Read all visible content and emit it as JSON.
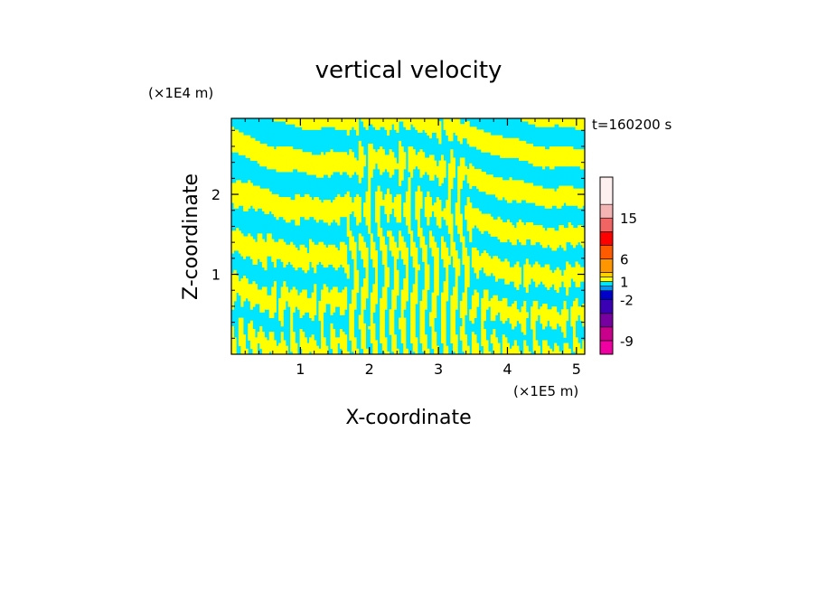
{
  "chart_data": {
    "type": "heatmap",
    "title": "vertical velocity",
    "xlabel": "X-coordinate",
    "ylabel": "Z-coordinate",
    "x_scale_label": "(×1E5 m)",
    "y_scale_label": "(×1E4 m)",
    "time_label": "t=160200 s",
    "xlim": [
      0,
      5.12
    ],
    "ylim": [
      0,
      2.95
    ],
    "x_ticks": [
      1,
      2,
      3,
      4,
      5
    ],
    "x_tick_labels": [
      "1",
      "2",
      "3",
      "4",
      "5"
    ],
    "y_ticks": [
      1,
      2
    ],
    "y_tick_labels": [
      "1",
      "2"
    ],
    "field_colors": {
      "positive": "#ffff00",
      "negative": "#00e5ff"
    },
    "colorbar": {
      "levels": [
        -12,
        -9,
        -6,
        -4,
        -2,
        -1,
        0,
        1,
        2,
        4,
        6,
        9,
        12,
        15,
        20
      ],
      "labels": [
        "15",
        "6",
        "1",
        "-2",
        "-9"
      ],
      "label_values": [
        15,
        6,
        1,
        -2,
        -9
      ],
      "colors": [
        "#f000a0",
        "#c8008c",
        "#7800a0",
        "#3c00b4",
        "#0000c8",
        "#0096ff",
        "#00e5ff",
        "#ffff00",
        "#ffd200",
        "#ff9600",
        "#ff5a00",
        "#ff0000",
        "#f06464",
        "#f5b4b4",
        "#fff0f0"
      ]
    }
  }
}
